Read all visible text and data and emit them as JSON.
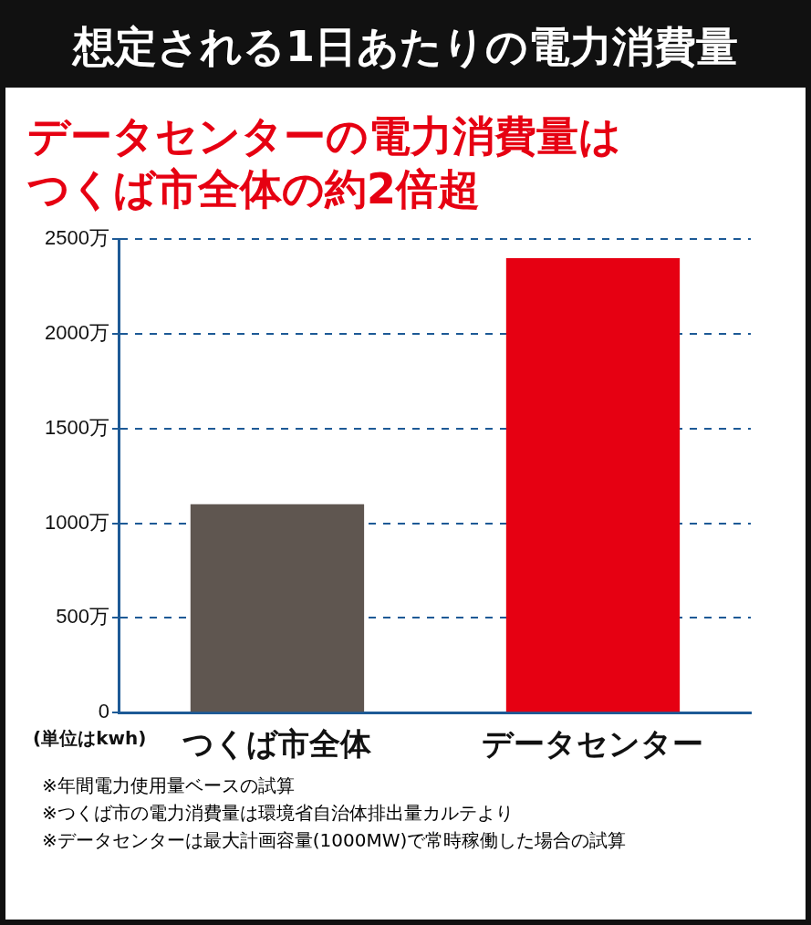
{
  "chart_data": {
    "type": "bar",
    "title": "想定される1日あたりの電力消費量",
    "subtitle": "データセンターの電力消費量はつくば市全体の約2倍超",
    "categories": [
      "つくば市全体",
      "データセンター"
    ],
    "values": [
      1100,
      2400
    ],
    "colors": [
      "#5f5650",
      "#e60012"
    ],
    "ylabel": "(単位はkwh)",
    "ylim": [
      0,
      2500
    ],
    "yticks": [
      {
        "value": 0,
        "label": "0"
      },
      {
        "value": 500,
        "label": "500万"
      },
      {
        "value": 1000,
        "label": "1000万"
      },
      {
        "value": 1500,
        "label": "1500万"
      },
      {
        "value": 2000,
        "label": "2000万"
      },
      {
        "value": 2500,
        "label": "2500万"
      }
    ],
    "grid": "y",
    "annotations": [
      "※年間電力使用量ベースの試算",
      "※つくば市の電力消費量は環境省自治体排出量カルテより",
      "※データセンターは最大計画容量(1000MW)で常時稼働した場合の試算"
    ]
  }
}
